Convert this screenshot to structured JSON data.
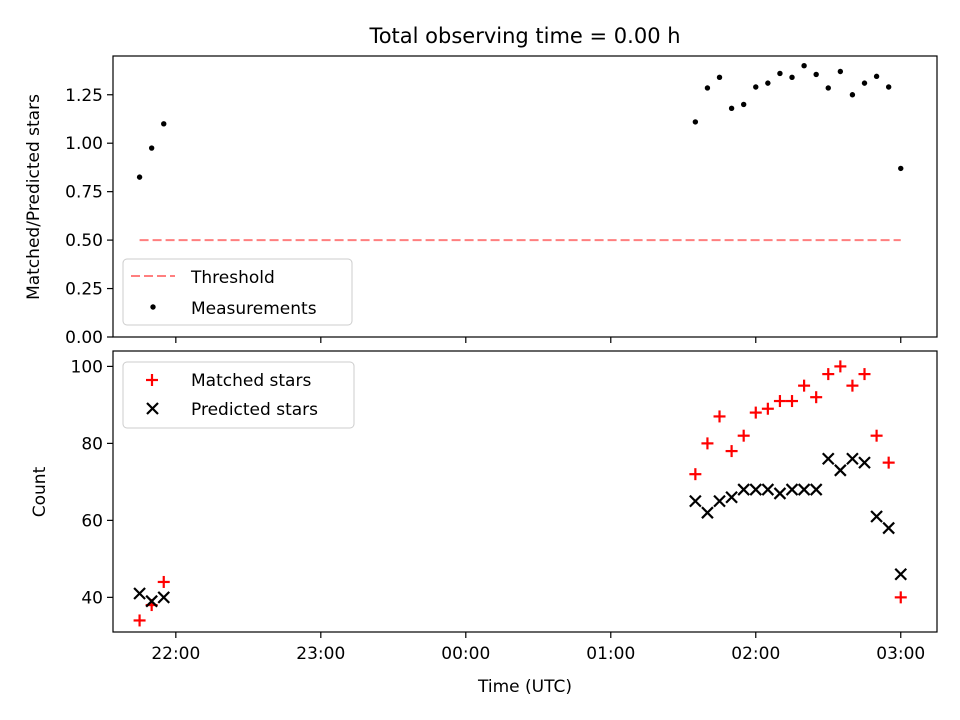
{
  "chart_data": [
    {
      "type": "scatter",
      "title": "Total observing time = 0.00 h",
      "xlabel": "",
      "ylabel": "Matched/Predicted stars",
      "xlim": [
        "21:34",
        "03:15"
      ],
      "ylim": [
        0,
        1.45
      ],
      "yticks": [
        "0.00",
        "0.25",
        "0.50",
        "0.75",
        "1.00",
        "1.25"
      ],
      "legend_position": "lower-left",
      "grid": false,
      "series": [
        {
          "name": "Threshold",
          "style": "dashed-line",
          "color": "#ff7f7f",
          "points": [
            [
              "21:45",
              0.5
            ],
            [
              "03:00",
              0.5
            ]
          ]
        },
        {
          "name": "Measurements",
          "style": "dot",
          "color": "#000000",
          "points": [
            [
              "21:45",
              0.825
            ],
            [
              "21:50",
              0.975
            ],
            [
              "21:55",
              1.1
            ],
            [
              "01:35",
              1.11
            ],
            [
              "01:40",
              1.285
            ],
            [
              "01:45",
              1.34
            ],
            [
              "01:50",
              1.18
            ],
            [
              "01:55",
              1.2
            ],
            [
              "02:00",
              1.29
            ],
            [
              "02:05",
              1.31
            ],
            [
              "02:10",
              1.36
            ],
            [
              "02:15",
              1.34
            ],
            [
              "02:20",
              1.4
            ],
            [
              "02:25",
              1.355
            ],
            [
              "02:30",
              1.285
            ],
            [
              "02:35",
              1.37
            ],
            [
              "02:40",
              1.25
            ],
            [
              "02:45",
              1.31
            ],
            [
              "02:50",
              1.345
            ],
            [
              "02:55",
              1.29
            ],
            [
              "03:00",
              0.87
            ]
          ]
        }
      ]
    },
    {
      "type": "scatter",
      "title": "",
      "xlabel": "Time (UTC)",
      "ylabel": "Count",
      "xlim": [
        "21:34",
        "03:15"
      ],
      "ylim": [
        31,
        104
      ],
      "yticks": [
        "40",
        "60",
        "80",
        "100"
      ],
      "xticks": [
        "22:00",
        "23:00",
        "00:00",
        "01:00",
        "02:00",
        "03:00"
      ],
      "legend_position": "upper-left",
      "grid": false,
      "series": [
        {
          "name": "Matched stars",
          "marker": "plus",
          "color": "#ff0000",
          "points": [
            [
              "21:45",
              34
            ],
            [
              "21:50",
              38
            ],
            [
              "21:55",
              44
            ],
            [
              "01:35",
              72
            ],
            [
              "01:40",
              80
            ],
            [
              "01:45",
              87
            ],
            [
              "01:50",
              78
            ],
            [
              "01:55",
              82
            ],
            [
              "02:00",
              88
            ],
            [
              "02:05",
              89
            ],
            [
              "02:10",
              91
            ],
            [
              "02:15",
              91
            ],
            [
              "02:20",
              95
            ],
            [
              "02:25",
              92
            ],
            [
              "02:30",
              98
            ],
            [
              "02:35",
              100
            ],
            [
              "02:40",
              95
            ],
            [
              "02:45",
              98
            ],
            [
              "02:50",
              82
            ],
            [
              "02:55",
              75
            ],
            [
              "03:00",
              40
            ]
          ]
        },
        {
          "name": "Predicted stars",
          "marker": "x",
          "color": "#000000",
          "points": [
            [
              "21:45",
              41
            ],
            [
              "21:50",
              39
            ],
            [
              "21:55",
              40
            ],
            [
              "01:35",
              65
            ],
            [
              "01:40",
              62
            ],
            [
              "01:45",
              65
            ],
            [
              "01:50",
              66
            ],
            [
              "01:55",
              68
            ],
            [
              "02:00",
              68
            ],
            [
              "02:05",
              68
            ],
            [
              "02:10",
              67
            ],
            [
              "02:15",
              68
            ],
            [
              "02:20",
              68
            ],
            [
              "02:25",
              68
            ],
            [
              "02:30",
              76
            ],
            [
              "02:35",
              73
            ],
            [
              "02:40",
              76
            ],
            [
              "02:45",
              75
            ],
            [
              "02:50",
              61
            ],
            [
              "02:55",
              58
            ],
            [
              "03:00",
              46
            ]
          ]
        }
      ]
    }
  ]
}
